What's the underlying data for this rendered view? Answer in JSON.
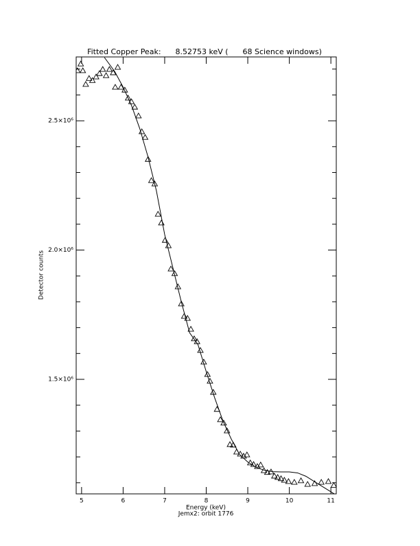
{
  "chart_data": {
    "type": "scatter",
    "title": "Fitted Copper Peak:      8.52753 keV (      68 Science windows)",
    "x_label": "Energy (keV)",
    "subtitle": "Jemx2: orbit 1776",
    "y_label": "Detector counts",
    "xlim": [
      4.87,
      11.13
    ],
    "ylim": [
      1057000,
      2747000
    ],
    "xticks": [
      5,
      6,
      7,
      8,
      9,
      10,
      11
    ],
    "yticks": [
      {
        "value": 1500000,
        "label": "1.5×10⁶"
      },
      {
        "value": 2000000,
        "label": "2.0×10⁶"
      },
      {
        "value": 2500000,
        "label": "2.5×10⁶"
      }
    ],
    "yminorticks": [
      1100000,
      1200000,
      1300000,
      1400000,
      1600000,
      1700000,
      1800000,
      1900000,
      2100000,
      2200000,
      2300000,
      2400000,
      2600000,
      2700000
    ],
    "color": "#000000",
    "series": [
      {
        "marker": "triangle",
        "x": [
          4.9,
          4.98,
          5.03,
          5.1,
          5.18,
          5.26,
          5.35,
          5.43,
          5.51,
          5.59,
          5.67,
          5.76,
          5.81,
          5.87,
          5.95,
          6.04,
          6.12,
          6.2,
          6.28,
          6.37,
          6.45,
          6.53,
          6.6,
          6.68,
          6.76,
          6.84,
          6.92,
          7.01,
          7.09,
          7.15,
          7.24,
          7.32,
          7.4,
          7.47,
          7.55,
          7.63,
          7.71,
          7.78,
          7.86,
          7.94,
          8.03,
          8.09,
          8.17,
          8.26,
          8.34,
          8.42,
          8.5,
          8.57,
          8.65,
          8.73,
          8.82,
          8.9,
          8.98,
          9.06,
          9.14,
          9.23,
          9.31,
          9.39,
          9.47,
          9.56,
          9.64,
          9.72,
          9.8,
          9.88,
          9.98,
          10.12,
          10.28,
          10.44,
          10.61,
          10.77,
          10.94,
          11.07
        ],
        "values": [
          2694000,
          2720000,
          2694000,
          2641000,
          2664000,
          2656000,
          2670000,
          2683000,
          2699000,
          2675000,
          2699000,
          2686000,
          2630000,
          2707000,
          2630000,
          2619000,
          2588000,
          2574000,
          2553000,
          2519000,
          2458000,
          2436000,
          2351000,
          2269000,
          2256000,
          2139000,
          2105000,
          2038000,
          2017000,
          1927000,
          1909000,
          1858000,
          1792000,
          1744000,
          1736000,
          1694000,
          1657000,
          1646000,
          1612000,
          1567000,
          1519000,
          1493000,
          1450000,
          1384000,
          1344000,
          1331000,
          1301000,
          1248000,
          1246000,
          1219000,
          1211000,
          1203000,
          1208000,
          1177000,
          1171000,
          1163000,
          1169000,
          1147000,
          1140000,
          1142000,
          1126000,
          1121000,
          1116000,
          1110000,
          1105000,
          1102000,
          1108000,
          1094000,
          1097000,
          1102000,
          1105000,
          1090000
        ]
      },
      {
        "marker": "line",
        "x": [
          5.55,
          5.8,
          6.0,
          6.2,
          6.4,
          6.6,
          6.8,
          7.0,
          7.2,
          7.4,
          7.6,
          7.8,
          8.0,
          8.2,
          8.4,
          8.6,
          8.8,
          9.0,
          9.2,
          9.4,
          9.6,
          9.8,
          10.0,
          10.2,
          10.4,
          10.6,
          10.8,
          11.0,
          11.1
        ],
        "values": [
          2745000,
          2690000,
          2630000,
          2560000,
          2470000,
          2360000,
          2230000,
          2060000,
          1930000,
          1800000,
          1680000,
          1635000,
          1530000,
          1430000,
          1340000,
          1270000,
          1210000,
          1180000,
          1160000,
          1148000,
          1143000,
          1142000,
          1142000,
          1138000,
          1125000,
          1105000,
          1085000,
          1065000,
          1055000
        ]
      }
    ]
  }
}
